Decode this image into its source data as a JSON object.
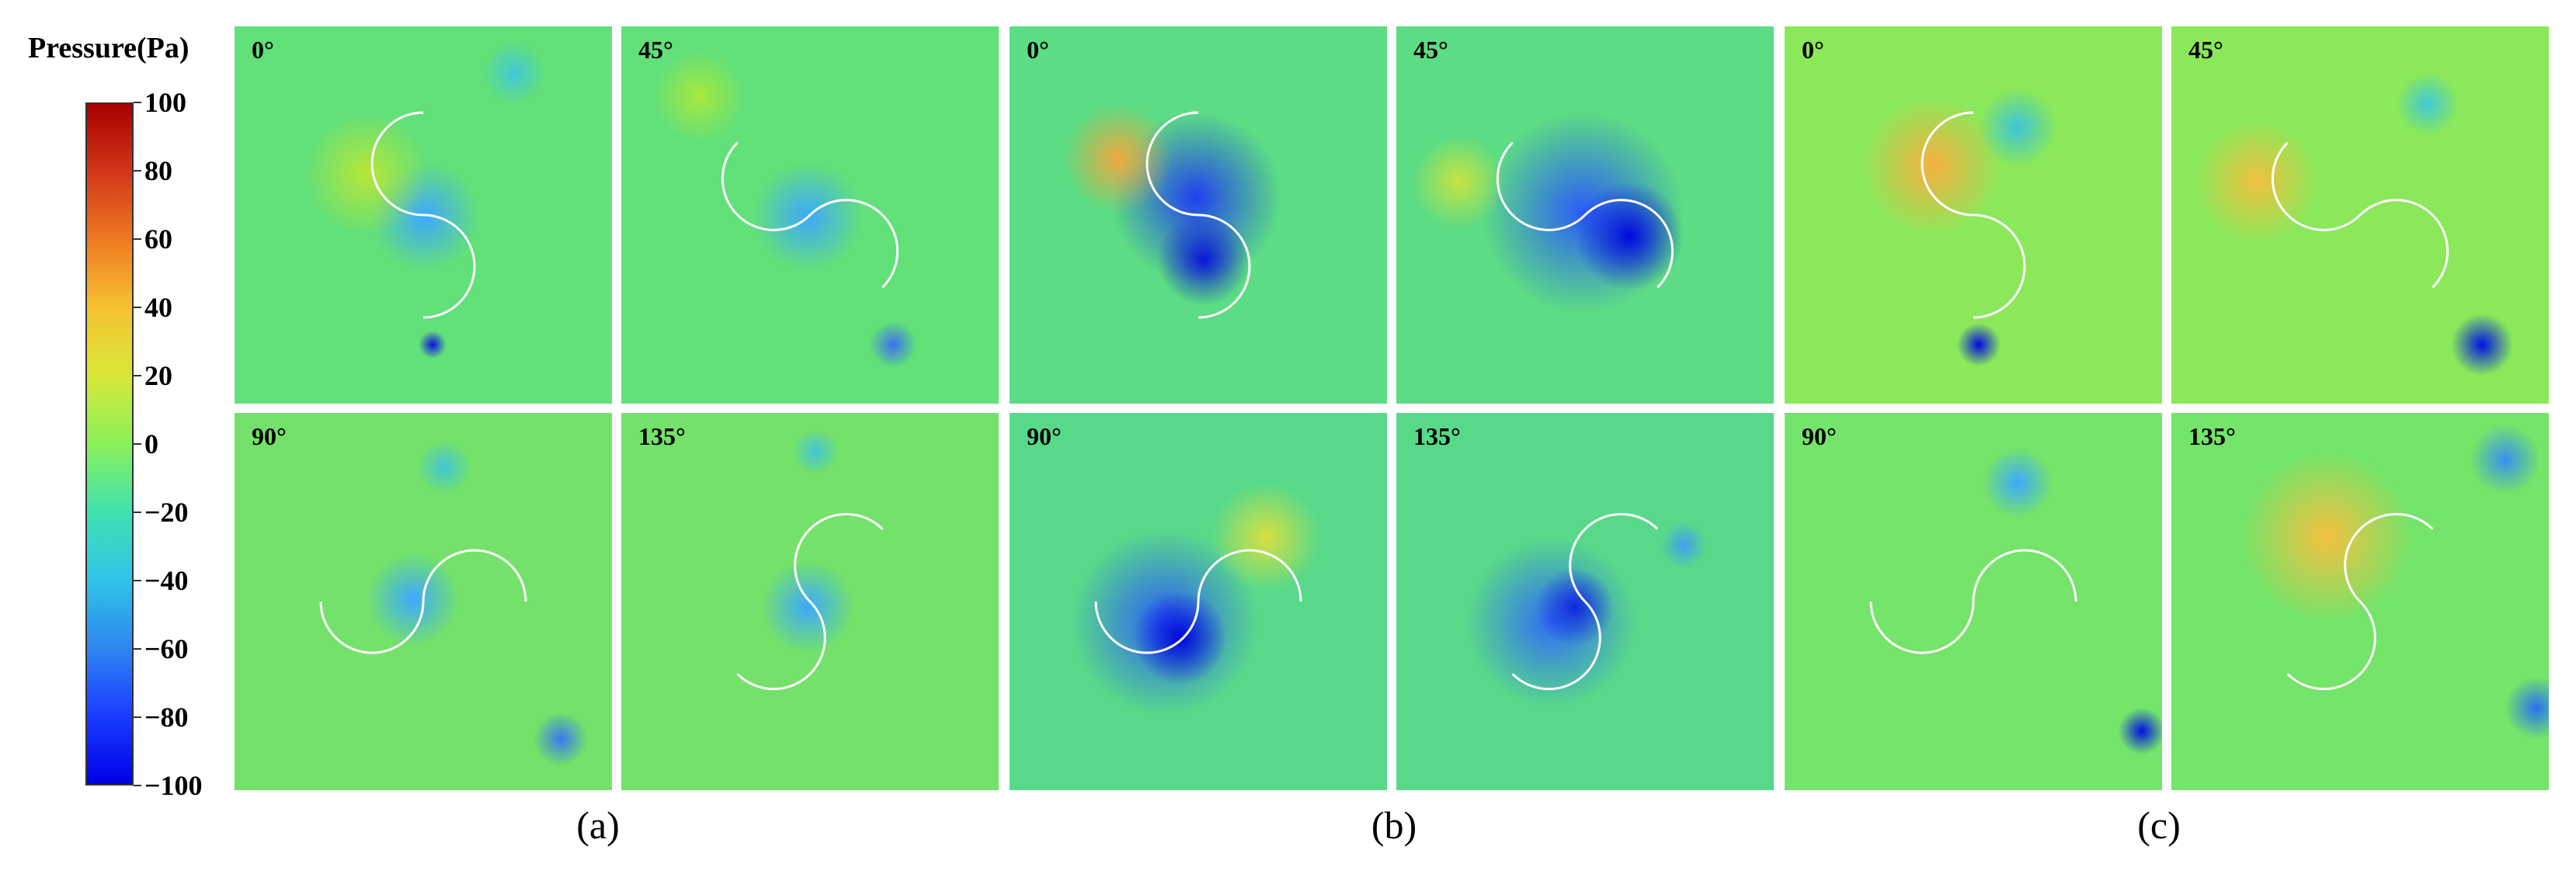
{
  "legend": {
    "title": "Pressure(Pa)",
    "ticks": [
      "100",
      "80",
      "60",
      "40",
      "20",
      "0",
      "−20",
      "−40",
      "−60",
      "−80",
      "−100"
    ],
    "colormap": [
      "#0000e6",
      "#1a3cff",
      "#2f86f0",
      "#2fc4e8",
      "#3fe2b0",
      "#8af05a",
      "#d8e83a",
      "#f7c232",
      "#ef7a22",
      "#d2361a",
      "#a80000"
    ]
  },
  "groups": [
    {
      "label": "(a)",
      "top_angles": [
        "0°",
        "45°"
      ],
      "bottom_angles": [
        "90°",
        "135°"
      ]
    },
    {
      "label": "(b)",
      "top_angles": [
        "0°",
        "45°"
      ],
      "bottom_angles": [
        "90°",
        "135°"
      ]
    },
    {
      "label": "(c)",
      "top_angles": [
        "0°",
        "45°"
      ],
      "bottom_angles": [
        "90°",
        "135°"
      ]
    }
  ]
}
